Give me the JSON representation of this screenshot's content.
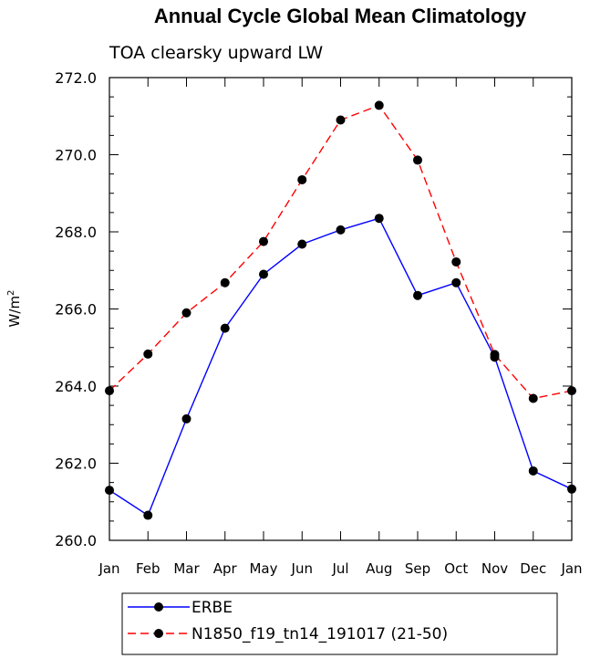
{
  "chart_data": {
    "type": "line",
    "title": "Annual Cycle Global Mean Climatology",
    "subtitle": "TOA clearsky upward LW",
    "ylabel": "W/m",
    "ylabel_sup": "2",
    "categories": [
      "Jan",
      "Feb",
      "Mar",
      "Apr",
      "May",
      "Jun",
      "Jul",
      "Aug",
      "Sep",
      "Oct",
      "Nov",
      "Dec",
      "Jan"
    ],
    "ylim": [
      260.0,
      272.0
    ],
    "yticks": [
      "260.0",
      "262.0",
      "264.0",
      "266.0",
      "268.0",
      "270.0",
      "272.0"
    ],
    "series": [
      {
        "name": "ERBE",
        "color": "#0000ff",
        "dash": "solid",
        "values": [
          261.3,
          260.65,
          263.15,
          265.5,
          266.9,
          267.68,
          268.05,
          268.35,
          266.35,
          266.68,
          264.75,
          261.8,
          261.33
        ]
      },
      {
        "name": "N1850_f19_tn14_191017 (21-50)",
        "color": "#ff0000",
        "dash": "dashed",
        "values": [
          263.88,
          264.83,
          265.9,
          266.68,
          267.75,
          269.35,
          270.9,
          271.28,
          269.86,
          267.22,
          264.82,
          263.68,
          263.88
        ]
      }
    ],
    "legend_position": "bottom"
  }
}
